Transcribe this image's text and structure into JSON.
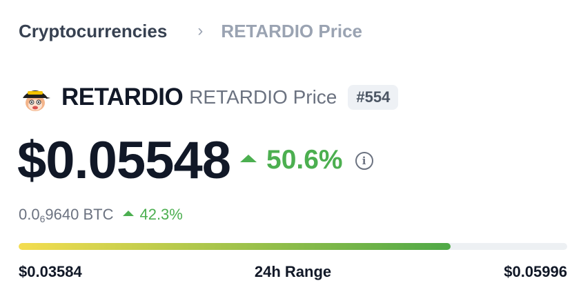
{
  "breadcrumb": {
    "parent_label": "Cryptocurrencies",
    "separator": "›",
    "current_label": "RETARDIO Price"
  },
  "coin": {
    "name": "RETARDIO",
    "subtitle": "RETARDIO Price",
    "rank": "#554",
    "logo_icon": "retardio-logo-icon"
  },
  "price": {
    "usd": "$0.05548",
    "change_24h": "50.6%",
    "change_direction": "up",
    "info_icon": "info-icon"
  },
  "btc": {
    "prefix": "0.0",
    "zero_count": "6",
    "digits": "9640",
    "unit": "BTC",
    "change": "42.3%"
  },
  "range": {
    "low": "$0.03584",
    "label": "24h Range",
    "high": "$0.05996",
    "position_fraction": 0.788
  },
  "colors": {
    "positive": "#4caf50",
    "gradient_start": "#f4dd4f",
    "gradient_end": "#4fa947",
    "muted": "#9aa3b2"
  }
}
